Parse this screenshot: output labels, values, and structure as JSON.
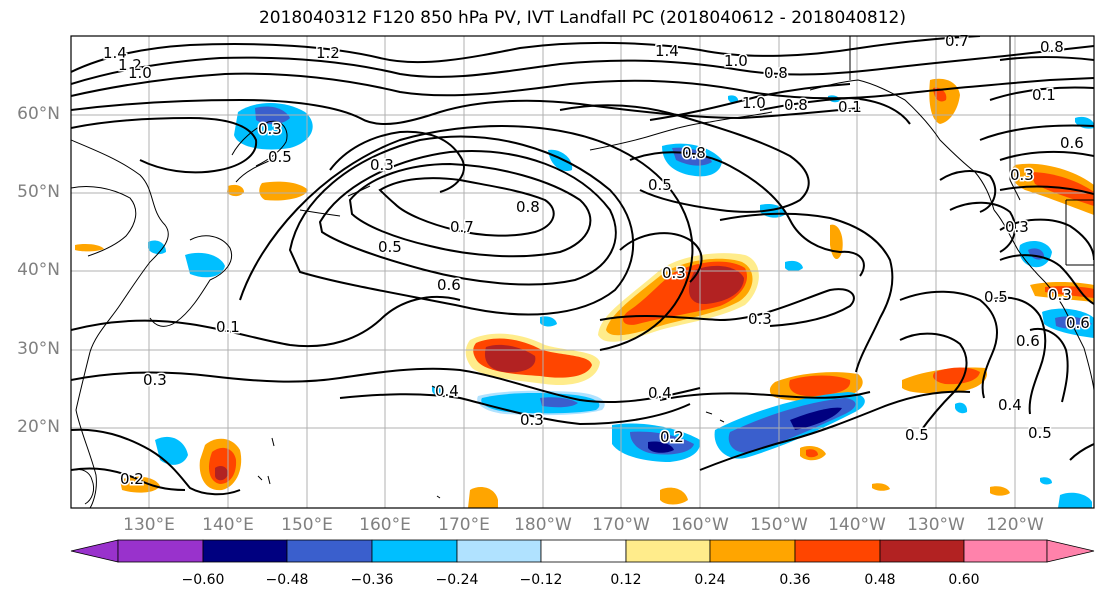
{
  "title": "2018040312 F120 850 hPa PV, IVT Landfall PC (2018040612 - 2018040812)",
  "map": {
    "lat_ticks": [
      "60°N",
      "50°N",
      "40°N",
      "30°N",
      "20°N"
    ],
    "lon_ticks": [
      "130°E",
      "140°E",
      "150°E",
      "160°E",
      "170°E",
      "180°W",
      "170°W",
      "160°W",
      "150°W",
      "140°W",
      "130°W",
      "120°W"
    ],
    "contour_labels": [
      "1.4",
      "1.2",
      "1.0",
      "1.2",
      "1.4",
      "1.0",
      "0.8",
      "0.7",
      "0.8",
      "1.0",
      "0.8",
      "0.1",
      "0.3",
      "0.5",
      "0.3",
      "0.8",
      "0.5",
      "0.7",
      "0.8",
      "0.5",
      "0.6",
      "0.3",
      "0.3",
      "0.3",
      "0.4",
      "0.3",
      "0.4",
      "0.2",
      "0.3",
      "0.5",
      "0.6",
      "0.4",
      "0.5",
      "0.6",
      "0.3",
      "0.3",
      "0.5",
      "0.6",
      "0.2",
      "0.1",
      "0.1"
    ],
    "colors": {
      "grid": "#b0b0b0",
      "coast": "#000000",
      "contour": "#000000"
    }
  },
  "colorbar": {
    "ticks": [
      "−0.60",
      "−0.48",
      "−0.36",
      "−0.24",
      "−0.12",
      "0.12",
      "0.24",
      "0.36",
      "0.48",
      "0.60"
    ],
    "colors": [
      "#9932cc",
      "#000080",
      "#3a5fcd",
      "#00bfff",
      "#b0e2ff",
      "#ffffff",
      "#ffec8b",
      "#ffa500",
      "#ff4500",
      "#b22222",
      "#ff82ab"
    ]
  }
}
